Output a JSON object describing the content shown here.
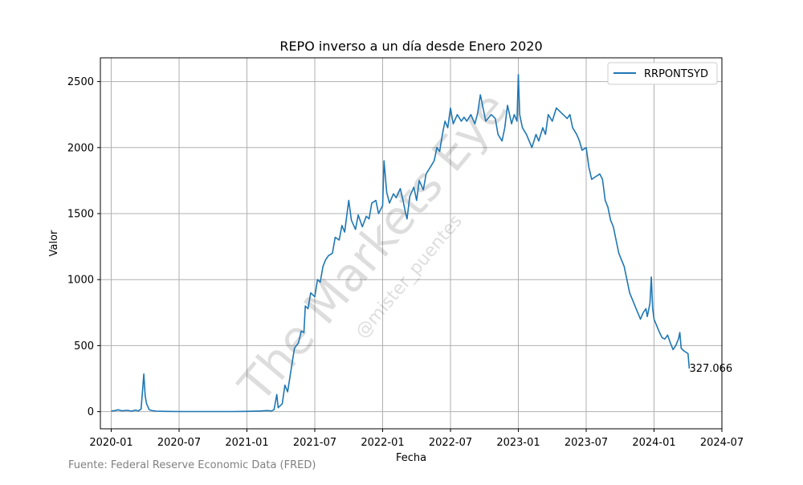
{
  "chart_data": {
    "type": "line",
    "title": "REPO inverso a un día desde Enero 2020",
    "xlabel": "Fecha",
    "ylabel": "Valor",
    "xlim": [
      2019.92,
      2024.5
    ],
    "ylim": [
      -130,
      2680
    ],
    "grid": true,
    "legend_position": "top-right",
    "x_ticks": [
      {
        "value": 2020.0,
        "label": "2020-01"
      },
      {
        "value": 2020.5,
        "label": "2020-07"
      },
      {
        "value": 2021.0,
        "label": "2021-01"
      },
      {
        "value": 2021.5,
        "label": "2021-07"
      },
      {
        "value": 2022.0,
        "label": "2022-01"
      },
      {
        "value": 2022.5,
        "label": "2022-07"
      },
      {
        "value": 2023.0,
        "label": "2023-01"
      },
      {
        "value": 2023.5,
        "label": "2023-07"
      },
      {
        "value": 2024.0,
        "label": "2024-01"
      },
      {
        "value": 2024.5,
        "label": "2024-07"
      }
    ],
    "y_ticks": [
      {
        "value": 0,
        "label": "0"
      },
      {
        "value": 500,
        "label": "500"
      },
      {
        "value": 1000,
        "label": "1000"
      },
      {
        "value": 1500,
        "label": "1500"
      },
      {
        "value": 2000,
        "label": "2000"
      },
      {
        "value": 2500,
        "label": "2500"
      }
    ],
    "series": [
      {
        "name": "RRPONTSYD",
        "color": "#1f77b4",
        "points": [
          [
            2020.0,
            5
          ],
          [
            2020.03,
            8
          ],
          [
            2020.05,
            14
          ],
          [
            2020.08,
            6
          ],
          [
            2020.12,
            10
          ],
          [
            2020.15,
            4
          ],
          [
            2020.18,
            12
          ],
          [
            2020.2,
            5
          ],
          [
            2020.22,
            20
          ],
          [
            2020.23,
            150
          ],
          [
            2020.24,
            285
          ],
          [
            2020.25,
            120
          ],
          [
            2020.26,
            60
          ],
          [
            2020.28,
            15
          ],
          [
            2020.3,
            8
          ],
          [
            2020.33,
            4
          ],
          [
            2020.4,
            2
          ],
          [
            2020.5,
            1
          ],
          [
            2020.6,
            1
          ],
          [
            2020.7,
            1
          ],
          [
            2020.8,
            1
          ],
          [
            2020.9,
            1
          ],
          [
            2021.0,
            2
          ],
          [
            2021.05,
            3
          ],
          [
            2021.1,
            5
          ],
          [
            2021.15,
            8
          ],
          [
            2021.18,
            5
          ],
          [
            2021.2,
            15
          ],
          [
            2021.22,
            130
          ],
          [
            2021.23,
            30
          ],
          [
            2021.26,
            60
          ],
          [
            2021.28,
            200
          ],
          [
            2021.3,
            150
          ],
          [
            2021.33,
            350
          ],
          [
            2021.35,
            480
          ],
          [
            2021.38,
            520
          ],
          [
            2021.4,
            610
          ],
          [
            2021.42,
            600
          ],
          [
            2021.43,
            800
          ],
          [
            2021.45,
            780
          ],
          [
            2021.47,
            900
          ],
          [
            2021.5,
            870
          ],
          [
            2021.52,
            1000
          ],
          [
            2021.54,
            980
          ],
          [
            2021.56,
            1100
          ],
          [
            2021.58,
            1150
          ],
          [
            2021.6,
            1180
          ],
          [
            2021.63,
            1200
          ],
          [
            2021.65,
            1320
          ],
          [
            2021.68,
            1300
          ],
          [
            2021.7,
            1410
          ],
          [
            2021.72,
            1360
          ],
          [
            2021.75,
            1600
          ],
          [
            2021.77,
            1450
          ],
          [
            2021.8,
            1380
          ],
          [
            2021.82,
            1490
          ],
          [
            2021.85,
            1400
          ],
          [
            2021.88,
            1480
          ],
          [
            2021.9,
            1460
          ],
          [
            2021.92,
            1580
          ],
          [
            2021.95,
            1600
          ],
          [
            2021.97,
            1500
          ],
          [
            2022.0,
            1560
          ],
          [
            2022.01,
            1900
          ],
          [
            2022.03,
            1660
          ],
          [
            2022.05,
            1580
          ],
          [
            2022.08,
            1650
          ],
          [
            2022.1,
            1620
          ],
          [
            2022.13,
            1690
          ],
          [
            2022.15,
            1600
          ],
          [
            2022.17,
            1500
          ],
          [
            2022.18,
            1460
          ],
          [
            2022.2,
            1630
          ],
          [
            2022.23,
            1700
          ],
          [
            2022.25,
            1600
          ],
          [
            2022.27,
            1750
          ],
          [
            2022.3,
            1680
          ],
          [
            2022.32,
            1800
          ],
          [
            2022.35,
            1850
          ],
          [
            2022.38,
            1900
          ],
          [
            2022.4,
            2000
          ],
          [
            2022.42,
            1970
          ],
          [
            2022.44,
            2100
          ],
          [
            2022.46,
            2200
          ],
          [
            2022.48,
            2150
          ],
          [
            2022.5,
            2300
          ],
          [
            2022.52,
            2180
          ],
          [
            2022.55,
            2250
          ],
          [
            2022.58,
            2200
          ],
          [
            2022.6,
            2230
          ],
          [
            2022.62,
            2200
          ],
          [
            2022.65,
            2250
          ],
          [
            2022.68,
            2180
          ],
          [
            2022.7,
            2260
          ],
          [
            2022.72,
            2400
          ],
          [
            2022.74,
            2300
          ],
          [
            2022.76,
            2200
          ],
          [
            2022.8,
            2250
          ],
          [
            2022.83,
            2220
          ],
          [
            2022.85,
            2100
          ],
          [
            2022.88,
            2050
          ],
          [
            2022.9,
            2150
          ],
          [
            2022.92,
            2320
          ],
          [
            2022.95,
            2180
          ],
          [
            2022.97,
            2250
          ],
          [
            2022.99,
            2200
          ],
          [
            2023.0,
            2553
          ],
          [
            2023.01,
            2250
          ],
          [
            2023.03,
            2150
          ],
          [
            2023.06,
            2100
          ],
          [
            2023.08,
            2050
          ],
          [
            2023.1,
            2000
          ],
          [
            2023.13,
            2100
          ],
          [
            2023.15,
            2050
          ],
          [
            2023.18,
            2150
          ],
          [
            2023.2,
            2100
          ],
          [
            2023.22,
            2250
          ],
          [
            2023.25,
            2200
          ],
          [
            2023.28,
            2300
          ],
          [
            2023.3,
            2280
          ],
          [
            2023.33,
            2250
          ],
          [
            2023.36,
            2220
          ],
          [
            2023.38,
            2250
          ],
          [
            2023.4,
            2150
          ],
          [
            2023.43,
            2100
          ],
          [
            2023.45,
            2050
          ],
          [
            2023.47,
            1980
          ],
          [
            2023.5,
            2000
          ],
          [
            2023.52,
            1850
          ],
          [
            2023.54,
            1760
          ],
          [
            2023.57,
            1780
          ],
          [
            2023.6,
            1800
          ],
          [
            2023.62,
            1760
          ],
          [
            2023.64,
            1600
          ],
          [
            2023.66,
            1550
          ],
          [
            2023.68,
            1450
          ],
          [
            2023.7,
            1400
          ],
          [
            2023.72,
            1300
          ],
          [
            2023.74,
            1200
          ],
          [
            2023.76,
            1150
          ],
          [
            2023.78,
            1100
          ],
          [
            2023.8,
            1000
          ],
          [
            2023.82,
            900
          ],
          [
            2023.84,
            850
          ],
          [
            2023.86,
            800
          ],
          [
            2023.88,
            750
          ],
          [
            2023.9,
            700
          ],
          [
            2023.92,
            750
          ],
          [
            2023.94,
            780
          ],
          [
            2023.95,
            720
          ],
          [
            2023.97,
            820
          ],
          [
            2023.98,
            1020
          ],
          [
            2023.99,
            780
          ],
          [
            2024.0,
            700
          ],
          [
            2024.02,
            650
          ],
          [
            2024.04,
            600
          ],
          [
            2024.06,
            560
          ],
          [
            2024.08,
            550
          ],
          [
            2024.1,
            580
          ],
          [
            2024.12,
            520
          ],
          [
            2024.14,
            470
          ],
          [
            2024.16,
            500
          ],
          [
            2024.18,
            550
          ],
          [
            2024.19,
            600
          ],
          [
            2024.2,
            480
          ],
          [
            2024.22,
            460
          ],
          [
            2024.25,
            440
          ],
          [
            2024.26,
            327.066
          ]
        ]
      }
    ],
    "annotations": [
      {
        "text": "327.066",
        "x": 2024.26,
        "y": 327.066
      }
    ],
    "watermark": {
      "main": "The Markets Eye",
      "sub": "@mister_puentes"
    },
    "source_note": "Fuente: Federal Reserve Economic Data (FRED)"
  }
}
